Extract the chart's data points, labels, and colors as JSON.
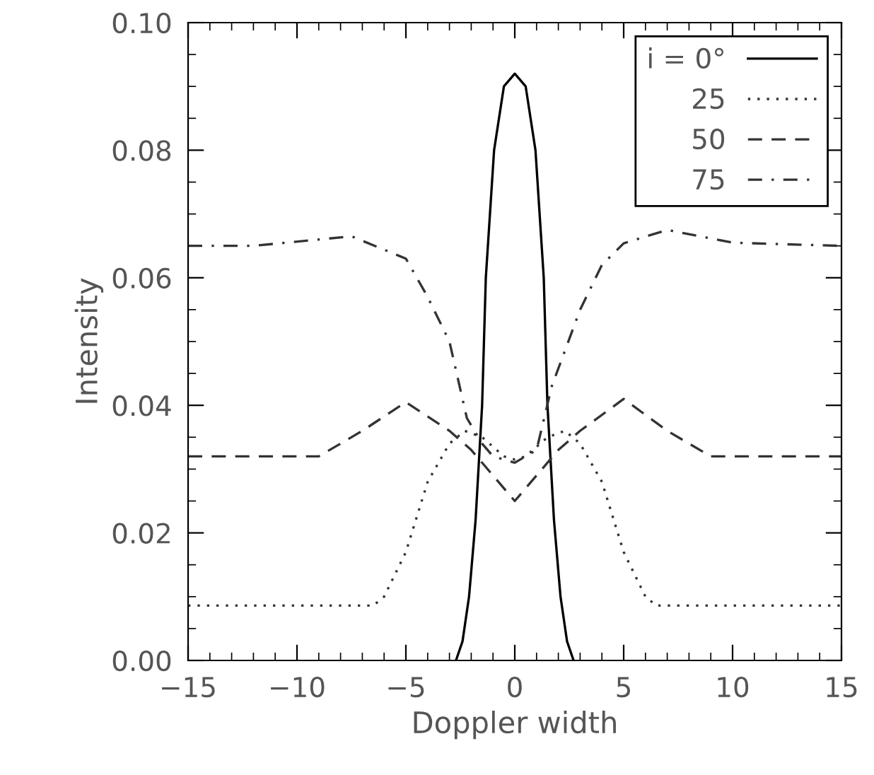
{
  "chart_data": {
    "type": "line",
    "xlabel": "Doppler width",
    "ylabel": "Intensity",
    "xlim": [
      -15,
      15
    ],
    "xticks": [
      {
        "value": -15,
        "label": "−15"
      },
      {
        "value": -10,
        "label": "−10"
      },
      {
        "value": -5,
        "label": "−5"
      },
      0,
      5,
      10,
      15
    ],
    "ylim": [
      0,
      0.1
    ],
    "yticks": [
      {
        "value": 0,
        "label": "0.00"
      },
      {
        "value": 0.02,
        "label": "0.02"
      },
      {
        "value": 0.04,
        "label": "0.04"
      },
      {
        "value": 0.06,
        "label": "0.06"
      },
      {
        "value": 0.08,
        "label": "0.08"
      },
      {
        "value": 0.1,
        "label": "0.10"
      }
    ],
    "grid": false,
    "legend": "top right",
    "marker": "none",
    "series": [
      {
        "name": "i = 0°",
        "color": "#000000",
        "line_style": "solid",
        "x": [
          -2.7,
          -2.4,
          -2.1,
          -1.8,
          -1.5,
          -1.33,
          -0.95,
          -0.5,
          0,
          0.5,
          0.95,
          1.33,
          1.5,
          1.8,
          2.1,
          2.4,
          2.7
        ],
        "values": [
          0,
          0.003,
          0.01,
          0.022,
          0.04,
          0.06,
          0.08,
          0.09,
          0.092,
          0.09,
          0.08,
          0.06,
          0.04,
          0.022,
          0.01,
          0.003,
          0
        ]
      },
      {
        "name": "25",
        "color": "#333333",
        "line_style": "dotted",
        "x": [
          -15,
          -6.5,
          -6,
          -5,
          -4,
          -3,
          -2.3,
          -1.5,
          -0.5,
          0,
          0.5,
          1.5,
          2.3,
          3,
          4,
          5,
          6,
          6.5,
          15
        ],
        "values": [
          0.0086,
          0.0086,
          0.01,
          0.017,
          0.028,
          0.034,
          0.036,
          0.035,
          0.032,
          0.0315,
          0.032,
          0.035,
          0.036,
          0.034,
          0.028,
          0.017,
          0.01,
          0.0086,
          0.0086
        ]
      },
      {
        "name": "50",
        "color": "#333333",
        "line_style": "dashed",
        "x": [
          -15,
          -9,
          -7,
          -5,
          -3,
          -2,
          -1,
          0,
          1,
          2,
          3,
          5,
          7,
          9,
          15
        ],
        "values": [
          0.032,
          0.032,
          0.036,
          0.0405,
          0.036,
          0.033,
          0.029,
          0.025,
          0.029,
          0.033,
          0.036,
          0.041,
          0.036,
          0.032,
          0.032
        ]
      },
      {
        "name": "75",
        "color": "#333333",
        "line_style": "dashdot",
        "x": [
          -15,
          -12,
          -7.5,
          -5,
          -4,
          -3,
          -2.2,
          -1.5,
          -1,
          0,
          1,
          1.7,
          3,
          4,
          5,
          7,
          10,
          15
        ],
        "values": [
          0.065,
          0.065,
          0.0665,
          0.063,
          0.057,
          0.05,
          0.038,
          0.034,
          0.032,
          0.031,
          0.033,
          0.043,
          0.055,
          0.062,
          0.0654,
          0.0675,
          0.0655,
          0.065
        ]
      }
    ]
  }
}
